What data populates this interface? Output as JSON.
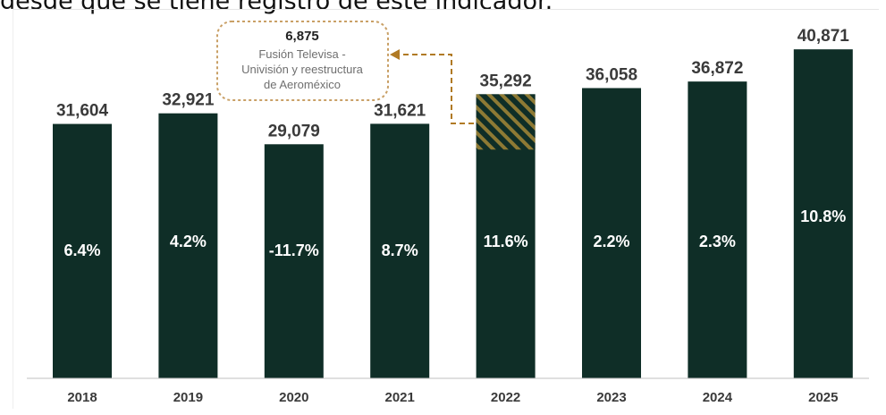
{
  "caption": "desde que se tiene registro de este indicador.",
  "colors": {
    "bar": "#0f2e27",
    "hatch": "#8e7a34",
    "annotation_border": "#c9a066",
    "arrow": "#b07a24",
    "axis": "#bfbfbf"
  },
  "chart_data": {
    "type": "bar",
    "categories": [
      "2018",
      "2019",
      "2020",
      "2021",
      "2022",
      "2023",
      "2024",
      "2025"
    ],
    "values": [
      31604,
      32921,
      29079,
      31621,
      35292,
      36058,
      36872,
      40871
    ],
    "value_labels": [
      "31,604",
      "32,921",
      "29,079",
      "31,621",
      "35,292",
      "36,058",
      "36,872",
      "40,871"
    ],
    "growth_labels": [
      "6.4%",
      "4.2%",
      "-11.7%",
      "8.7%",
      "11.6%",
      "2.2%",
      "2.3%",
      "10.8%"
    ],
    "growth_values": [
      6.4,
      4.2,
      -11.7,
      8.7,
      11.6,
      2.2,
      2.3,
      10.8
    ],
    "highlight": {
      "category": "2022",
      "value": 6875,
      "value_label": "6,875",
      "pattern": "hatched"
    },
    "annotation": {
      "value_label": "6,875",
      "lines": [
        "Fusión Televisa -",
        "Univisión y reestructura",
        "de Aeroméxico"
      ]
    },
    "ylim": [
      0,
      42000
    ],
    "grid": false,
    "legend": "none"
  }
}
